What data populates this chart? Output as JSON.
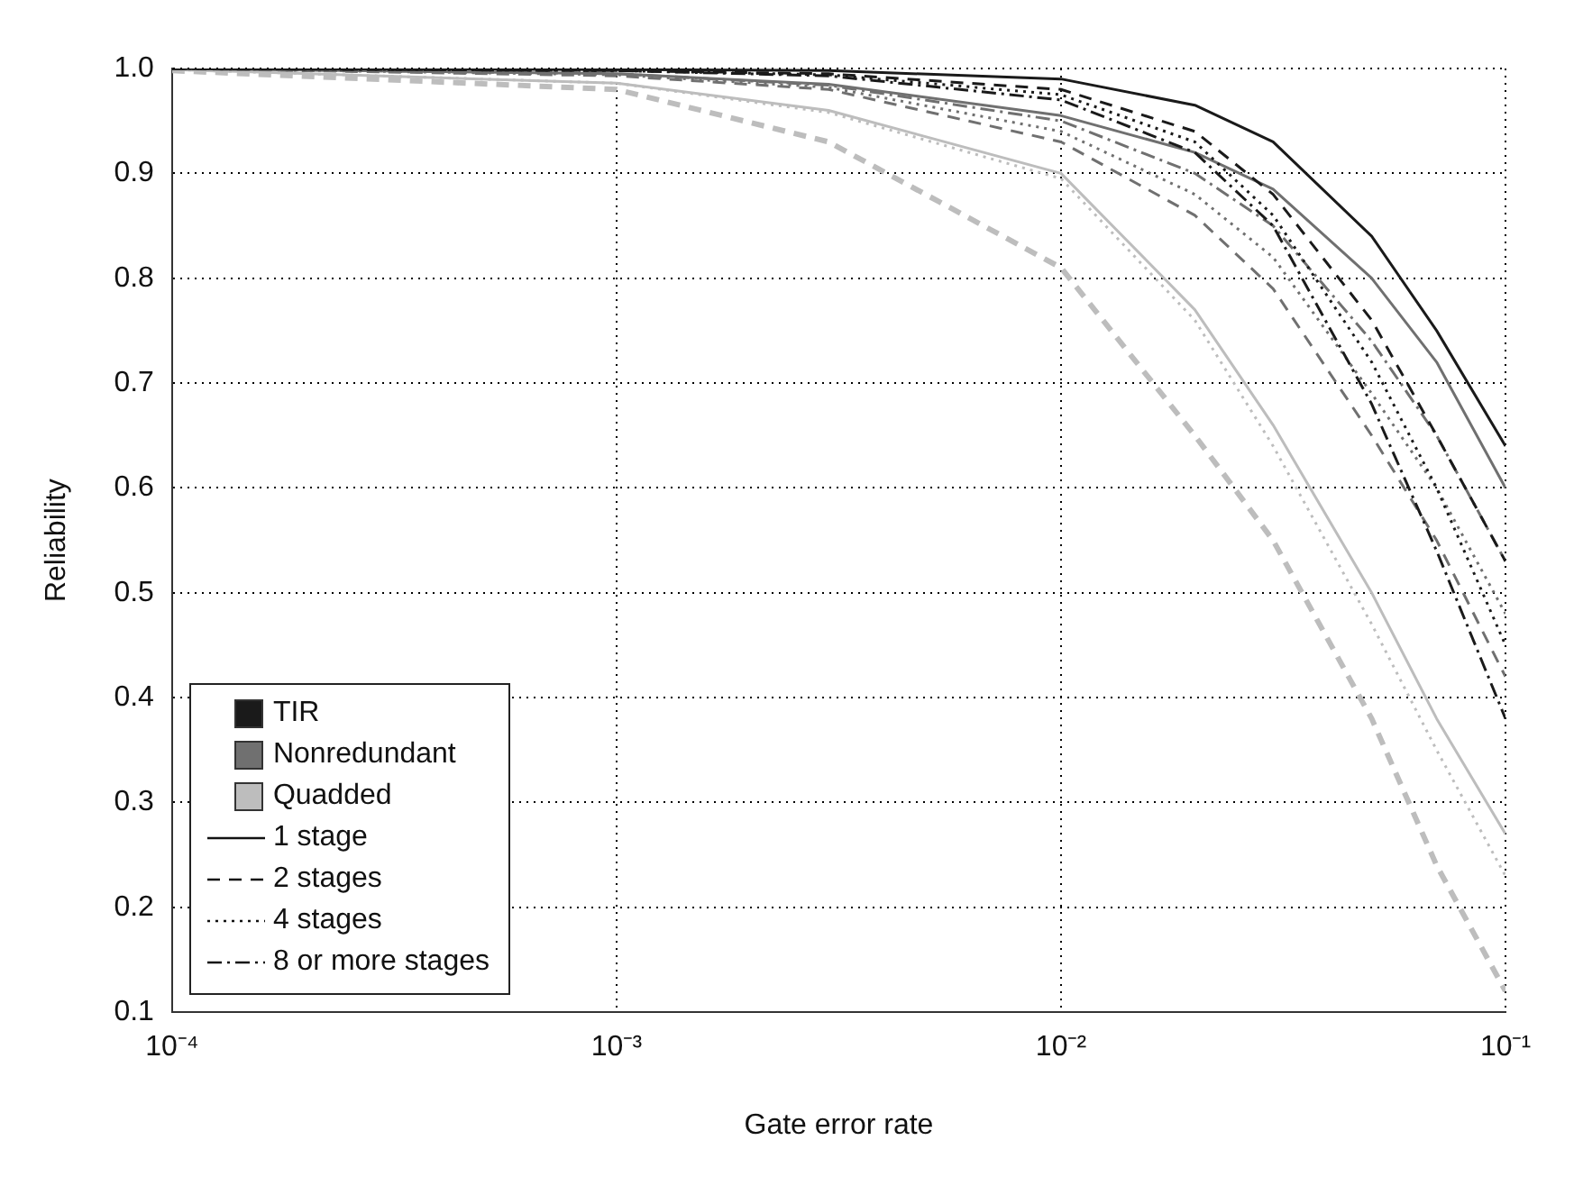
{
  "chart_data": {
    "type": "line",
    "xlabel": "Gate error rate",
    "ylabel": "Reliability",
    "log": "x",
    "grid": true,
    "marker": "none",
    "xlim": [
      0.0001,
      0.1
    ],
    "xticks": [
      {
        "value": 0.0001,
        "label": "10⁻⁴"
      },
      {
        "value": 0.001,
        "label": "10⁻³"
      },
      {
        "value": 0.01,
        "label": "10⁻²"
      },
      {
        "value": 0.1,
        "label": "10⁻¹"
      }
    ],
    "ylim": [
      0.1,
      1.0
    ],
    "yticks": [
      {
        "value": 0.1,
        "label": "0.1"
      },
      {
        "value": 0.2,
        "label": "0.2"
      },
      {
        "value": 0.3,
        "label": "0.3"
      },
      {
        "value": 0.4,
        "label": "0.4"
      },
      {
        "value": 0.5,
        "label": "0.5"
      },
      {
        "value": 0.6,
        "label": "0.6"
      },
      {
        "value": 0.7,
        "label": "0.7"
      },
      {
        "value": 0.8,
        "label": "0.8"
      },
      {
        "value": 0.9,
        "label": "0.9"
      },
      {
        "value": 1.0,
        "label": "1.0"
      }
    ],
    "x": [
      0.0001,
      0.001,
      0.003,
      0.01,
      0.02,
      0.03,
      0.05,
      0.07,
      0.1
    ],
    "annotations": [
      "TIR",
      "Nonredundant",
      "Quadded",
      "1 stage",
      "2 stages",
      "4 stages",
      "8 or more stages"
    ],
    "series": [
      {
        "color": "#1a1a1a",
        "line_style": "solid",
        "values": [
          1,
          0.999,
          0.998,
          0.99,
          0.965,
          0.93,
          0.84,
          0.75,
          0.64
        ]
      },
      {
        "color": "#1a1a1a",
        "line_style": "dashed",
        "values": [
          1,
          0.998,
          0.995,
          0.98,
          0.94,
          0.88,
          0.76,
          0.65,
          0.53
        ]
      },
      {
        "color": "#1a1a1a",
        "line_style": "dotted",
        "values": [
          1,
          0.998,
          0.994,
          0.975,
          0.93,
          0.86,
          0.72,
          0.6,
          0.45
        ]
      },
      {
        "color": "#1a1a1a",
        "line_style": "dashdot",
        "values": [
          1,
          0.998,
          0.993,
          0.97,
          0.92,
          0.85,
          0.68,
          0.54,
          0.38
        ]
      },
      {
        "color": "#707070",
        "line_style": "solid",
        "values": [
          1,
          0.995,
          0.985,
          0.955,
          0.92,
          0.885,
          0.8,
          0.72,
          0.6
        ]
      },
      {
        "color": "#707070",
        "line_style": "dashed",
        "values": [
          1,
          0.993,
          0.98,
          0.93,
          0.86,
          0.79,
          0.65,
          0.55,
          0.42
        ]
      },
      {
        "color": "#707070",
        "line_style": "dotted",
        "values": [
          1,
          0.994,
          0.982,
          0.94,
          0.88,
          0.82,
          0.69,
          0.6,
          0.48
        ]
      },
      {
        "color": "#707070",
        "line_style": "dashdot",
        "values": [
          1,
          0.995,
          0.984,
          0.95,
          0.9,
          0.85,
          0.74,
          0.65,
          0.53
        ]
      },
      {
        "color": "#bdbdbd",
        "line_style": "solid",
        "values": [
          0.999,
          0.986,
          0.96,
          0.9,
          0.77,
          0.66,
          0.5,
          0.38,
          0.27
        ]
      },
      {
        "color": "#bdbdbd",
        "line_style": "dashed",
        "values": [
          0.998,
          0.98,
          0.93,
          0.81,
          0.65,
          0.55,
          0.38,
          0.24,
          0.12
        ]
      },
      {
        "color": "#bdbdbd",
        "line_style": "dotted",
        "values": [
          0.999,
          0.986,
          0.958,
          0.895,
          0.76,
          0.64,
          0.47,
          0.35,
          0.23
        ]
      }
    ]
  }
}
